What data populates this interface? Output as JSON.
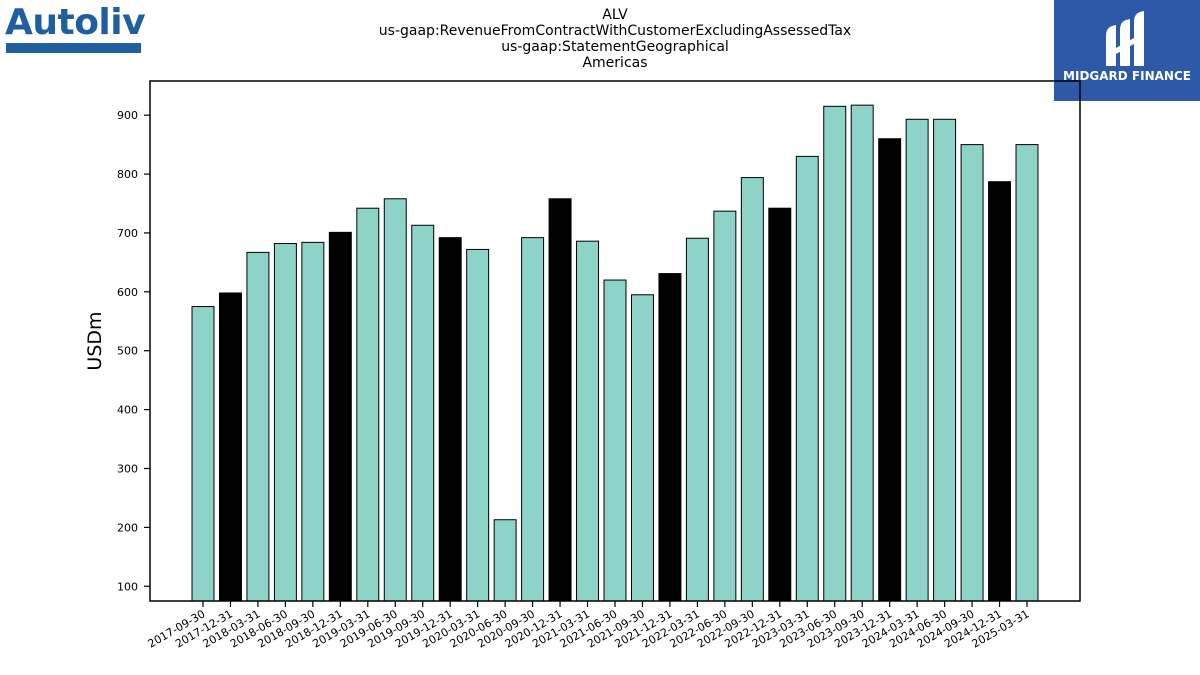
{
  "header": {
    "left_logo_text": "Autoliv",
    "right_logo_text": "MIDGARD FINANCE",
    "title_lines": [
      "ALV",
      "us-gaap:RevenueFromContractWithCustomerExcludingAssessedTax",
      "us-gaap:StatementGeographical",
      "Americas"
    ]
  },
  "colors": {
    "teal": "#8dd3c7",
    "black": "#000000",
    "logo_blue": "#1f5f9f",
    "badge_blue": "#2d59a8"
  },
  "chart_data": {
    "type": "bar",
    "title": "ALV\nus-gaap:RevenueFromContractWithCustomerExcludingAssessedTax\nus-gaap:StatementGeographical\nAmericas",
    "ylabel": "USDm",
    "xlabel": "",
    "ylim": [
      75,
      958
    ],
    "yticks": [
      100,
      200,
      300,
      400,
      500,
      600,
      700,
      800,
      900
    ],
    "grid": false,
    "categories": [
      "2017-09-30",
      "2017-12-31",
      "2018-03-31",
      "2018-06-30",
      "2018-09-30",
      "2018-12-31",
      "2019-03-31",
      "2019-06-30",
      "2019-09-30",
      "2019-12-31",
      "2020-03-31",
      "2020-06-30",
      "2020-09-30",
      "2020-12-31",
      "2021-03-31",
      "2021-06-30",
      "2021-09-30",
      "2021-12-31",
      "2022-03-31",
      "2022-06-30",
      "2022-09-30",
      "2022-12-31",
      "2023-03-31",
      "2023-06-30",
      "2023-09-30",
      "2023-12-31",
      "2024-03-31",
      "2024-06-30",
      "2024-09-30",
      "2024-12-31",
      "2025-03-31"
    ],
    "values": [
      575,
      598,
      667,
      682,
      684,
      701,
      742,
      758,
      713,
      692,
      672,
      213,
      692,
      758,
      686,
      620,
      595,
      631,
      691,
      737,
      794,
      742,
      830,
      915,
      917,
      860,
      893,
      893,
      850,
      787,
      850
    ],
    "bar_colors": [
      "#8dd3c7",
      "#000000",
      "#8dd3c7",
      "#8dd3c7",
      "#8dd3c7",
      "#000000",
      "#8dd3c7",
      "#8dd3c7",
      "#8dd3c7",
      "#000000",
      "#8dd3c7",
      "#8dd3c7",
      "#8dd3c7",
      "#000000",
      "#8dd3c7",
      "#8dd3c7",
      "#8dd3c7",
      "#000000",
      "#8dd3c7",
      "#8dd3c7",
      "#8dd3c7",
      "#000000",
      "#8dd3c7",
      "#8dd3c7",
      "#8dd3c7",
      "#000000",
      "#8dd3c7",
      "#8dd3c7",
      "#8dd3c7",
      "#000000",
      "#8dd3c7"
    ]
  }
}
